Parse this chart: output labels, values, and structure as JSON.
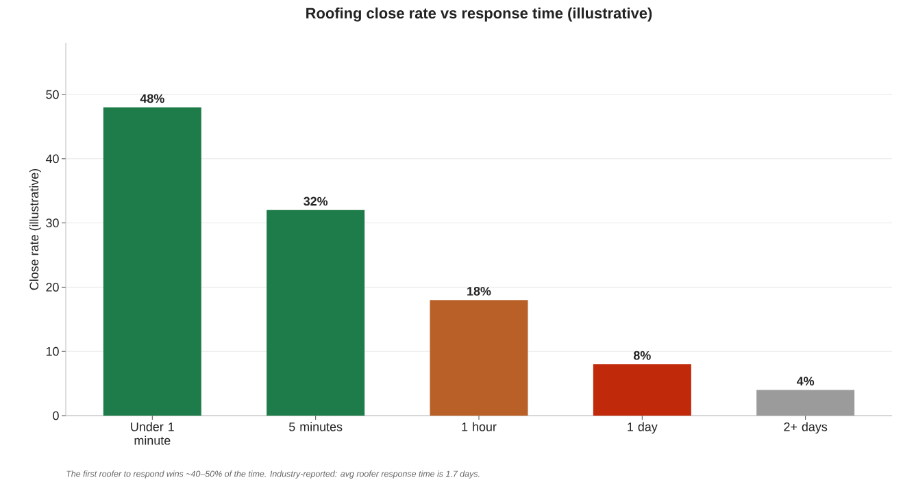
{
  "chart_data": {
    "type": "bar",
    "title": "Roofing close rate vs response time (illustrative)",
    "ylabel": "Close rate (illustrative)",
    "categories": [
      "Under 1 minute",
      "5 minutes",
      "1 hour",
      "1 day",
      "2+ days"
    ],
    "values": [
      48,
      32,
      18,
      8,
      4
    ],
    "colors": [
      "#1e7b4a",
      "#1e7b4a",
      "#b86027",
      "#c0290a",
      "#9b9b9b"
    ],
    "value_labels": [
      "48%",
      "32%",
      "18%",
      "8%",
      "4%"
    ],
    "ylim": [
      0,
      58
    ],
    "yticks": [
      0,
      10,
      20,
      30,
      40,
      50
    ],
    "grid": "y",
    "annotations": [
      "The first roofer to respond wins ~40–50% of the time. Industry-reported: avg roofer response time is 1.7 days."
    ]
  }
}
